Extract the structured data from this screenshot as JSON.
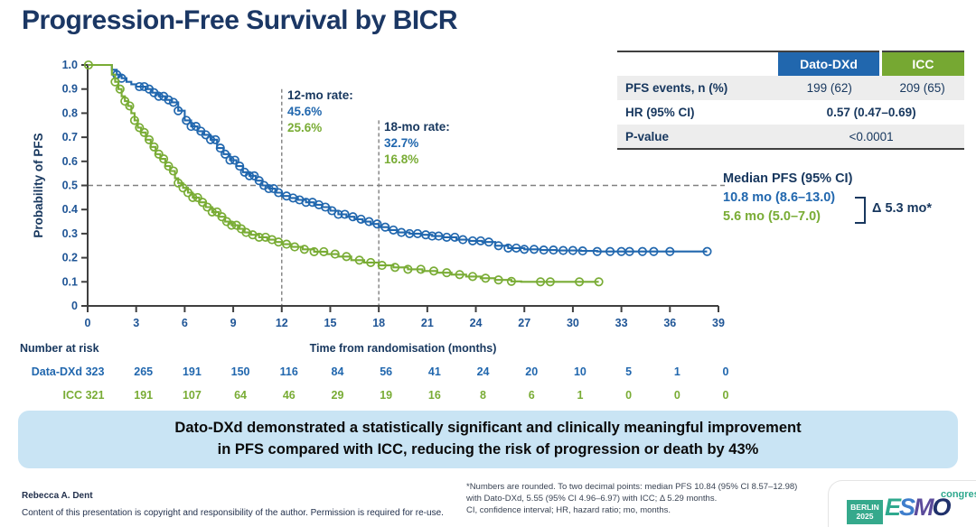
{
  "slide": {
    "title": "Progression-Free Survival by BICR",
    "summary_line1": "Dato-DXd demonstrated a statistically significant and clinically meaningful improvement",
    "summary_line2": "in PFS compared with ICC, reducing the risk of progression or death by 43%"
  },
  "colors": {
    "dato_blue": "#2167AE",
    "icc_green": "#79AC35",
    "icc_header_green": "#76A832",
    "navy": "#17375E",
    "axis_dark": "#3F3F3F",
    "dash_gray": "#808080",
    "banner_blue": "#C9E4F4"
  },
  "stats_table": {
    "col1": "Dato-DXd",
    "col2": "ICC",
    "rows": [
      {
        "label": "PFS events, n (%)",
        "dato": "199 (62)",
        "icc": "209 (65)"
      },
      {
        "label": "HR (95% CI)",
        "value": "0.57 (0.47–0.69)"
      },
      {
        "label": "P-value",
        "value": "<0.0001"
      }
    ]
  },
  "annotations": {
    "rate12": {
      "title": "12-mo rate:",
      "dato": "45.6%",
      "icc": "25.6%"
    },
    "rate18": {
      "title": "18-mo rate:",
      "dato": "32.7%",
      "icc": "16.8%"
    },
    "median": {
      "title": "Median PFS (95% CI)",
      "dato": "10.8 mo (8.6–13.0)",
      "icc": "5.6 mo (5.0–7.0)",
      "delta": "Δ 5.3 mo*"
    }
  },
  "chart_data": {
    "type": "line",
    "subtype": "kaplan-meier-step",
    "title": "Progression-Free Survival by BICR",
    "xlabel": "Time from randomisation (months)",
    "ylabel": "Probability of PFS",
    "xlim": [
      0,
      39
    ],
    "ylim": [
      0,
      1.0
    ],
    "x_ticks": [
      0,
      3,
      6,
      9,
      12,
      15,
      18,
      21,
      24,
      27,
      30,
      33,
      36,
      39
    ],
    "y_tick_labels": [
      "1.0",
      "0.9",
      "0.8",
      "0.7",
      "0.6",
      "0.5",
      "0.4",
      "0.3",
      "0.2",
      "0.1",
      "0"
    ],
    "grid": false,
    "reference_lines": {
      "horizontal_prob": 0.5,
      "vertical": [
        {
          "month": 12,
          "top_prob": 0.9
        },
        {
          "month": 18,
          "top_prob": 0.77
        }
      ]
    },
    "series": [
      {
        "name": "Dato-DXd",
        "color": "#2167AE",
        "points": [
          [
            0,
            1.0
          ],
          [
            1.3,
            1.0
          ],
          [
            1.5,
            0.98
          ],
          [
            1.8,
            0.96
          ],
          [
            2.1,
            0.945
          ],
          [
            2.4,
            0.93
          ],
          [
            2.7,
            0.92
          ],
          [
            3.0,
            0.91
          ],
          [
            3.6,
            0.9
          ],
          [
            4.0,
            0.885
          ],
          [
            4.4,
            0.87
          ],
          [
            4.8,
            0.855
          ],
          [
            5.2,
            0.845
          ],
          [
            5.6,
            0.81
          ],
          [
            6.0,
            0.77
          ],
          [
            6.4,
            0.745
          ],
          [
            6.8,
            0.725
          ],
          [
            7.2,
            0.71
          ],
          [
            7.6,
            0.69
          ],
          [
            8.0,
            0.655
          ],
          [
            8.4,
            0.63
          ],
          [
            8.8,
            0.605
          ],
          [
            9.2,
            0.58
          ],
          [
            9.6,
            0.555
          ],
          [
            10.0,
            0.54
          ],
          [
            10.4,
            0.52
          ],
          [
            10.8,
            0.5
          ],
          [
            11.2,
            0.487
          ],
          [
            11.6,
            0.47
          ],
          [
            12.0,
            0.456
          ],
          [
            12.5,
            0.448
          ],
          [
            13.0,
            0.44
          ],
          [
            13.5,
            0.43
          ],
          [
            14.0,
            0.42
          ],
          [
            14.5,
            0.41
          ],
          [
            15.0,
            0.395
          ],
          [
            15.5,
            0.38
          ],
          [
            16.0,
            0.37
          ],
          [
            16.5,
            0.36
          ],
          [
            17.0,
            0.35
          ],
          [
            17.5,
            0.34
          ],
          [
            18.0,
            0.327
          ],
          [
            18.6,
            0.315
          ],
          [
            19.2,
            0.305
          ],
          [
            19.9,
            0.3
          ],
          [
            20.6,
            0.295
          ],
          [
            21.3,
            0.29
          ],
          [
            22.0,
            0.285
          ],
          [
            22.8,
            0.275
          ],
          [
            23.6,
            0.27
          ],
          [
            24.4,
            0.265
          ],
          [
            25.2,
            0.25
          ],
          [
            26.0,
            0.24
          ],
          [
            27.0,
            0.235
          ],
          [
            28.0,
            0.232
          ],
          [
            29.0,
            0.23
          ],
          [
            30.5,
            0.228
          ],
          [
            31.5,
            0.226
          ],
          [
            38.3,
            0.226
          ]
        ],
        "censor_times": [
          1.8,
          2.1,
          3.2,
          3.5,
          3.8,
          4.1,
          4.4,
          4.7,
          5.0,
          5.3,
          5.6,
          6.1,
          6.4,
          6.7,
          7.0,
          7.3,
          7.6,
          7.9,
          8.2,
          8.5,
          8.8,
          9.1,
          9.4,
          9.7,
          10.0,
          10.3,
          10.6,
          10.9,
          11.2,
          11.5,
          11.8,
          12.3,
          12.7,
          13.1,
          13.5,
          13.9,
          14.3,
          14.7,
          15.1,
          15.5,
          15.9,
          16.4,
          16.9,
          17.4,
          17.9,
          18.4,
          18.9,
          19.4,
          19.9,
          20.4,
          20.9,
          21.3,
          21.7,
          22.2,
          22.7,
          23.2,
          23.8,
          24.3,
          24.8,
          25.4,
          26.0,
          26.5,
          27.0,
          27.6,
          28.2,
          28.8,
          29.4,
          30.0,
          30.6,
          31.5,
          32.3,
          33.0,
          33.5,
          34.3,
          35.0,
          36.0,
          38.3
        ]
      },
      {
        "name": "ICC",
        "color": "#79AC35",
        "points": [
          [
            0,
            1.0
          ],
          [
            1.3,
            1.0
          ],
          [
            1.5,
            0.96
          ],
          [
            1.7,
            0.93
          ],
          [
            1.9,
            0.9
          ],
          [
            2.1,
            0.87
          ],
          [
            2.3,
            0.85
          ],
          [
            2.5,
            0.83
          ],
          [
            2.7,
            0.8
          ],
          [
            2.9,
            0.77
          ],
          [
            3.1,
            0.74
          ],
          [
            3.3,
            0.72
          ],
          [
            3.6,
            0.69
          ],
          [
            3.9,
            0.66
          ],
          [
            4.2,
            0.63
          ],
          [
            4.5,
            0.61
          ],
          [
            4.8,
            0.58
          ],
          [
            5.1,
            0.56
          ],
          [
            5.4,
            0.53
          ],
          [
            5.6,
            0.51
          ],
          [
            5.9,
            0.49
          ],
          [
            6.2,
            0.47
          ],
          [
            6.5,
            0.45
          ],
          [
            6.9,
            0.43
          ],
          [
            7.3,
            0.41
          ],
          [
            7.7,
            0.39
          ],
          [
            8.1,
            0.37
          ],
          [
            8.5,
            0.35
          ],
          [
            8.9,
            0.335
          ],
          [
            9.3,
            0.32
          ],
          [
            9.7,
            0.305
          ],
          [
            10.1,
            0.295
          ],
          [
            10.6,
            0.285
          ],
          [
            11.1,
            0.275
          ],
          [
            11.6,
            0.265
          ],
          [
            12.0,
            0.256
          ],
          [
            12.6,
            0.245
          ],
          [
            13.3,
            0.235
          ],
          [
            14.0,
            0.225
          ],
          [
            14.8,
            0.215
          ],
          [
            15.5,
            0.205
          ],
          [
            16.3,
            0.19
          ],
          [
            17.1,
            0.18
          ],
          [
            18.0,
            0.168
          ],
          [
            18.9,
            0.16
          ],
          [
            19.8,
            0.152
          ],
          [
            20.7,
            0.145
          ],
          [
            21.6,
            0.138
          ],
          [
            22.5,
            0.13
          ],
          [
            23.4,
            0.122
          ],
          [
            24.3,
            0.115
          ],
          [
            25.2,
            0.108
          ],
          [
            26.2,
            0.102
          ],
          [
            26.8,
            0.1
          ],
          [
            31.6,
            0.1
          ]
        ],
        "censor_times": [
          0.05,
          1.7,
          2.0,
          2.3,
          2.6,
          2.9,
          3.2,
          3.5,
          3.8,
          4.1,
          4.4,
          4.7,
          5.0,
          5.3,
          5.6,
          5.9,
          6.2,
          6.5,
          6.8,
          7.1,
          7.4,
          7.7,
          8.0,
          8.3,
          8.6,
          8.9,
          9.2,
          9.5,
          9.8,
          10.2,
          10.6,
          11.0,
          11.4,
          11.8,
          12.3,
          12.8,
          13.4,
          14.0,
          14.6,
          15.3,
          16.0,
          16.8,
          17.5,
          18.2,
          19.0,
          19.8,
          20.6,
          21.4,
          22.2,
          23.0,
          23.8,
          24.6,
          25.4,
          26.2,
          28.0,
          28.6,
          30.4,
          31.6
        ]
      }
    ],
    "rates": {
      "12mo": {
        "Dato-DXd": "45.6%",
        "ICC": "25.6%"
      },
      "18mo": {
        "Dato-DXd": "32.7%",
        "ICC": "16.8%"
      }
    },
    "number_at_risk": {
      "header": "Number at risk",
      "rows": [
        {
          "label": "Data-DXd",
          "color": "#2167AE",
          "counts": [
            323,
            265,
            191,
            150,
            116,
            84,
            56,
            41,
            24,
            20,
            10,
            5,
            1,
            0
          ]
        },
        {
          "label": "ICC",
          "color": "#79AC35",
          "counts": [
            321,
            191,
            107,
            64,
            46,
            29,
            19,
            16,
            8,
            6,
            1,
            0,
            0,
            0
          ]
        }
      ]
    }
  },
  "footer": {
    "author": "Rebecca A. Dent",
    "copyright": "Content of this presentation is copyright and responsibility of the author. Permission is required for re-use.",
    "note_line1": "*Numbers are rounded. To two decimal points: median PFS 10.84 (95% CI 8.57–12.98)",
    "note_line2": "with Dato-DXd, 5.55 (95% CI 4.96–6.97) with ICC; Δ 5.29 months.",
    "note_line3": "CI, confidence interval; HR, hazard ratio; mo, months.",
    "logo": {
      "berlin_line1": "BERLIN",
      "berlin_line2": "2025",
      "esmo_letters": [
        "E",
        "S",
        "M",
        "O"
      ],
      "congress": "congress"
    }
  }
}
